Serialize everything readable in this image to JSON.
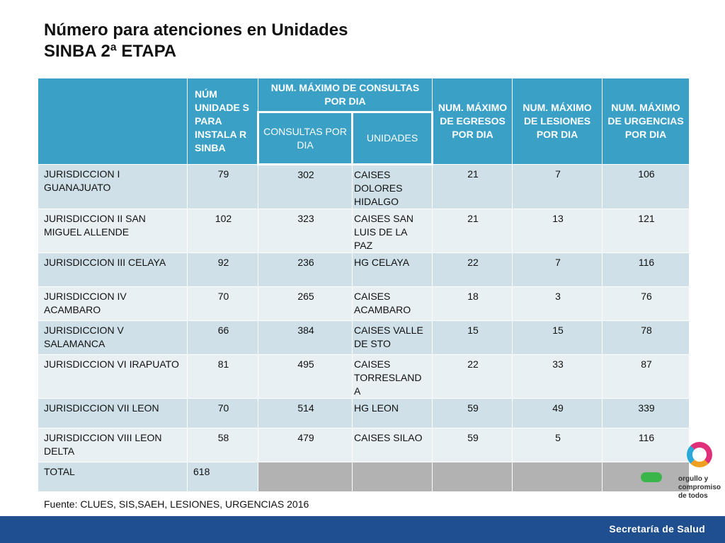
{
  "title": {
    "line1": "Número para atenciones en Unidades",
    "line2": "SINBA 2ª ETAPA"
  },
  "table": {
    "headers": {
      "num_unidades": "NÚM UNIDADE S PARA INSTALA R SINBA",
      "consultas_group": "NUM. MÁXIMO DE CONSULTAS POR DIA",
      "consultas_por_dia": "CONSULTAS POR DIA",
      "unidades": "UNIDADES",
      "egresos": "NUM. MÁXIMO DE EGRESOS POR DIA",
      "lesiones": "NUM. MÁXIMO DE LESIONES POR DIA",
      "urgencias": "NUM. MÁXIMO DE URGENCIAS POR DIA"
    },
    "rows": [
      {
        "jurisdiccion": "JURISDICCION I GUANAJUATO",
        "num_unidades": "79",
        "consultas": "302",
        "unidades": "CAISES DOLORES HIDALGO",
        "egresos": "21",
        "lesiones": "7",
        "urgencias": "106"
      },
      {
        "jurisdiccion": "JURISDICCION II SAN MIGUEL ALLENDE",
        "num_unidades": "102",
        "consultas": "323",
        "unidades": "CAISES SAN LUIS DE LA PAZ",
        "egresos": "21",
        "lesiones": "13",
        "urgencias": "121"
      },
      {
        "jurisdiccion": "JURISDICCION III CELAYA",
        "num_unidades": "92",
        "consultas": "236",
        "unidades": "HG CELAYA",
        "egresos": "22",
        "lesiones": "7",
        "urgencias": "116"
      },
      {
        "jurisdiccion": "JURISDICCION IV ACAMBARO",
        "num_unidades": "70",
        "consultas": "265",
        "unidades": "CAISES ACAMBARO",
        "egresos": "18",
        "lesiones": "3",
        "urgencias": "76"
      },
      {
        "jurisdiccion": "JURISDICCION V SALAMANCA",
        "num_unidades": "66",
        "consultas": "384",
        "unidades": "CAISES VALLE DE STO",
        "egresos": "15",
        "lesiones": "15",
        "urgencias": "78"
      },
      {
        "jurisdiccion": "JURISDICCION VI IRAPUATO",
        "num_unidades": "81",
        "consultas": "495",
        "unidades": "CAISES TORRESLAND A",
        "egresos": "22",
        "lesiones": "33",
        "urgencias": "87"
      },
      {
        "jurisdiccion": "JURISDICCION VII LEON",
        "num_unidades": "70",
        "consultas": "514",
        "unidades": "HG LEON",
        "egresos": "59",
        "lesiones": "49",
        "urgencias": "339"
      },
      {
        "jurisdiccion": "JURISDICCION VIII LEON DELTA",
        "num_unidades": "58",
        "consultas": "479",
        "unidades": "CAISES SILAO",
        "egresos": "59",
        "lesiones": "5",
        "urgencias": "116"
      }
    ],
    "total": {
      "label": "TOTAL",
      "num_unidades": "618"
    }
  },
  "source": "Fuente: CLUES, SIS,SAEH, LESIONES, URGENCIAS  2016",
  "footer": {
    "ministry": "Secretaría de Salud",
    "logo_text_1": "orgullo y",
    "logo_text_2": "compromiso",
    "logo_text_3": "de todos"
  },
  "colors": {
    "header_bg": "#3aa0c6",
    "row_dark": "#cfe0e8",
    "row_light": "#e8f0f4",
    "total_grey": "#b2b2b2",
    "footer_bar": "#1f4f8e"
  }
}
